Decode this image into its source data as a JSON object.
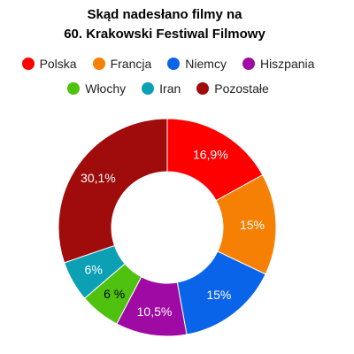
{
  "chart_data": {
    "type": "pie",
    "subtype": "donut",
    "title_lines": [
      "Skąd nadesłano filmy na",
      "60. Krakowski Festiwal Filmowy"
    ],
    "legend_placement": "top",
    "slices": [
      {
        "name": "Polska",
        "value": 16.9,
        "label": "16,9%",
        "color": "#fe0000",
        "label_color": "#ffffff"
      },
      {
        "name": "Francja",
        "value": 15.0,
        "label": "15%",
        "color": "#f58004",
        "label_color": "#ffffff"
      },
      {
        "name": "Niemcy",
        "value": 15.0,
        "label": "15%",
        "color": "#0a64ea",
        "label_color": "#ffffff"
      },
      {
        "name": "Hiszpania",
        "value": 10.5,
        "label": "10,5%",
        "color": "#a00aa4",
        "label_color": "#ffffff"
      },
      {
        "name": "Włochy",
        "value": 6.0,
        "label": "6 %",
        "color": "#4ec20e",
        "label_color": "#000000"
      },
      {
        "name": "Iran",
        "value": 6.0,
        "label": "6%",
        "color": "#0ba0b4",
        "label_color": "#ffffff"
      },
      {
        "name": "Pozostałe",
        "value": 30.1,
        "label": "30,1%",
        "color": "#a00b0b",
        "label_color": "#ffffff"
      }
    ]
  }
}
